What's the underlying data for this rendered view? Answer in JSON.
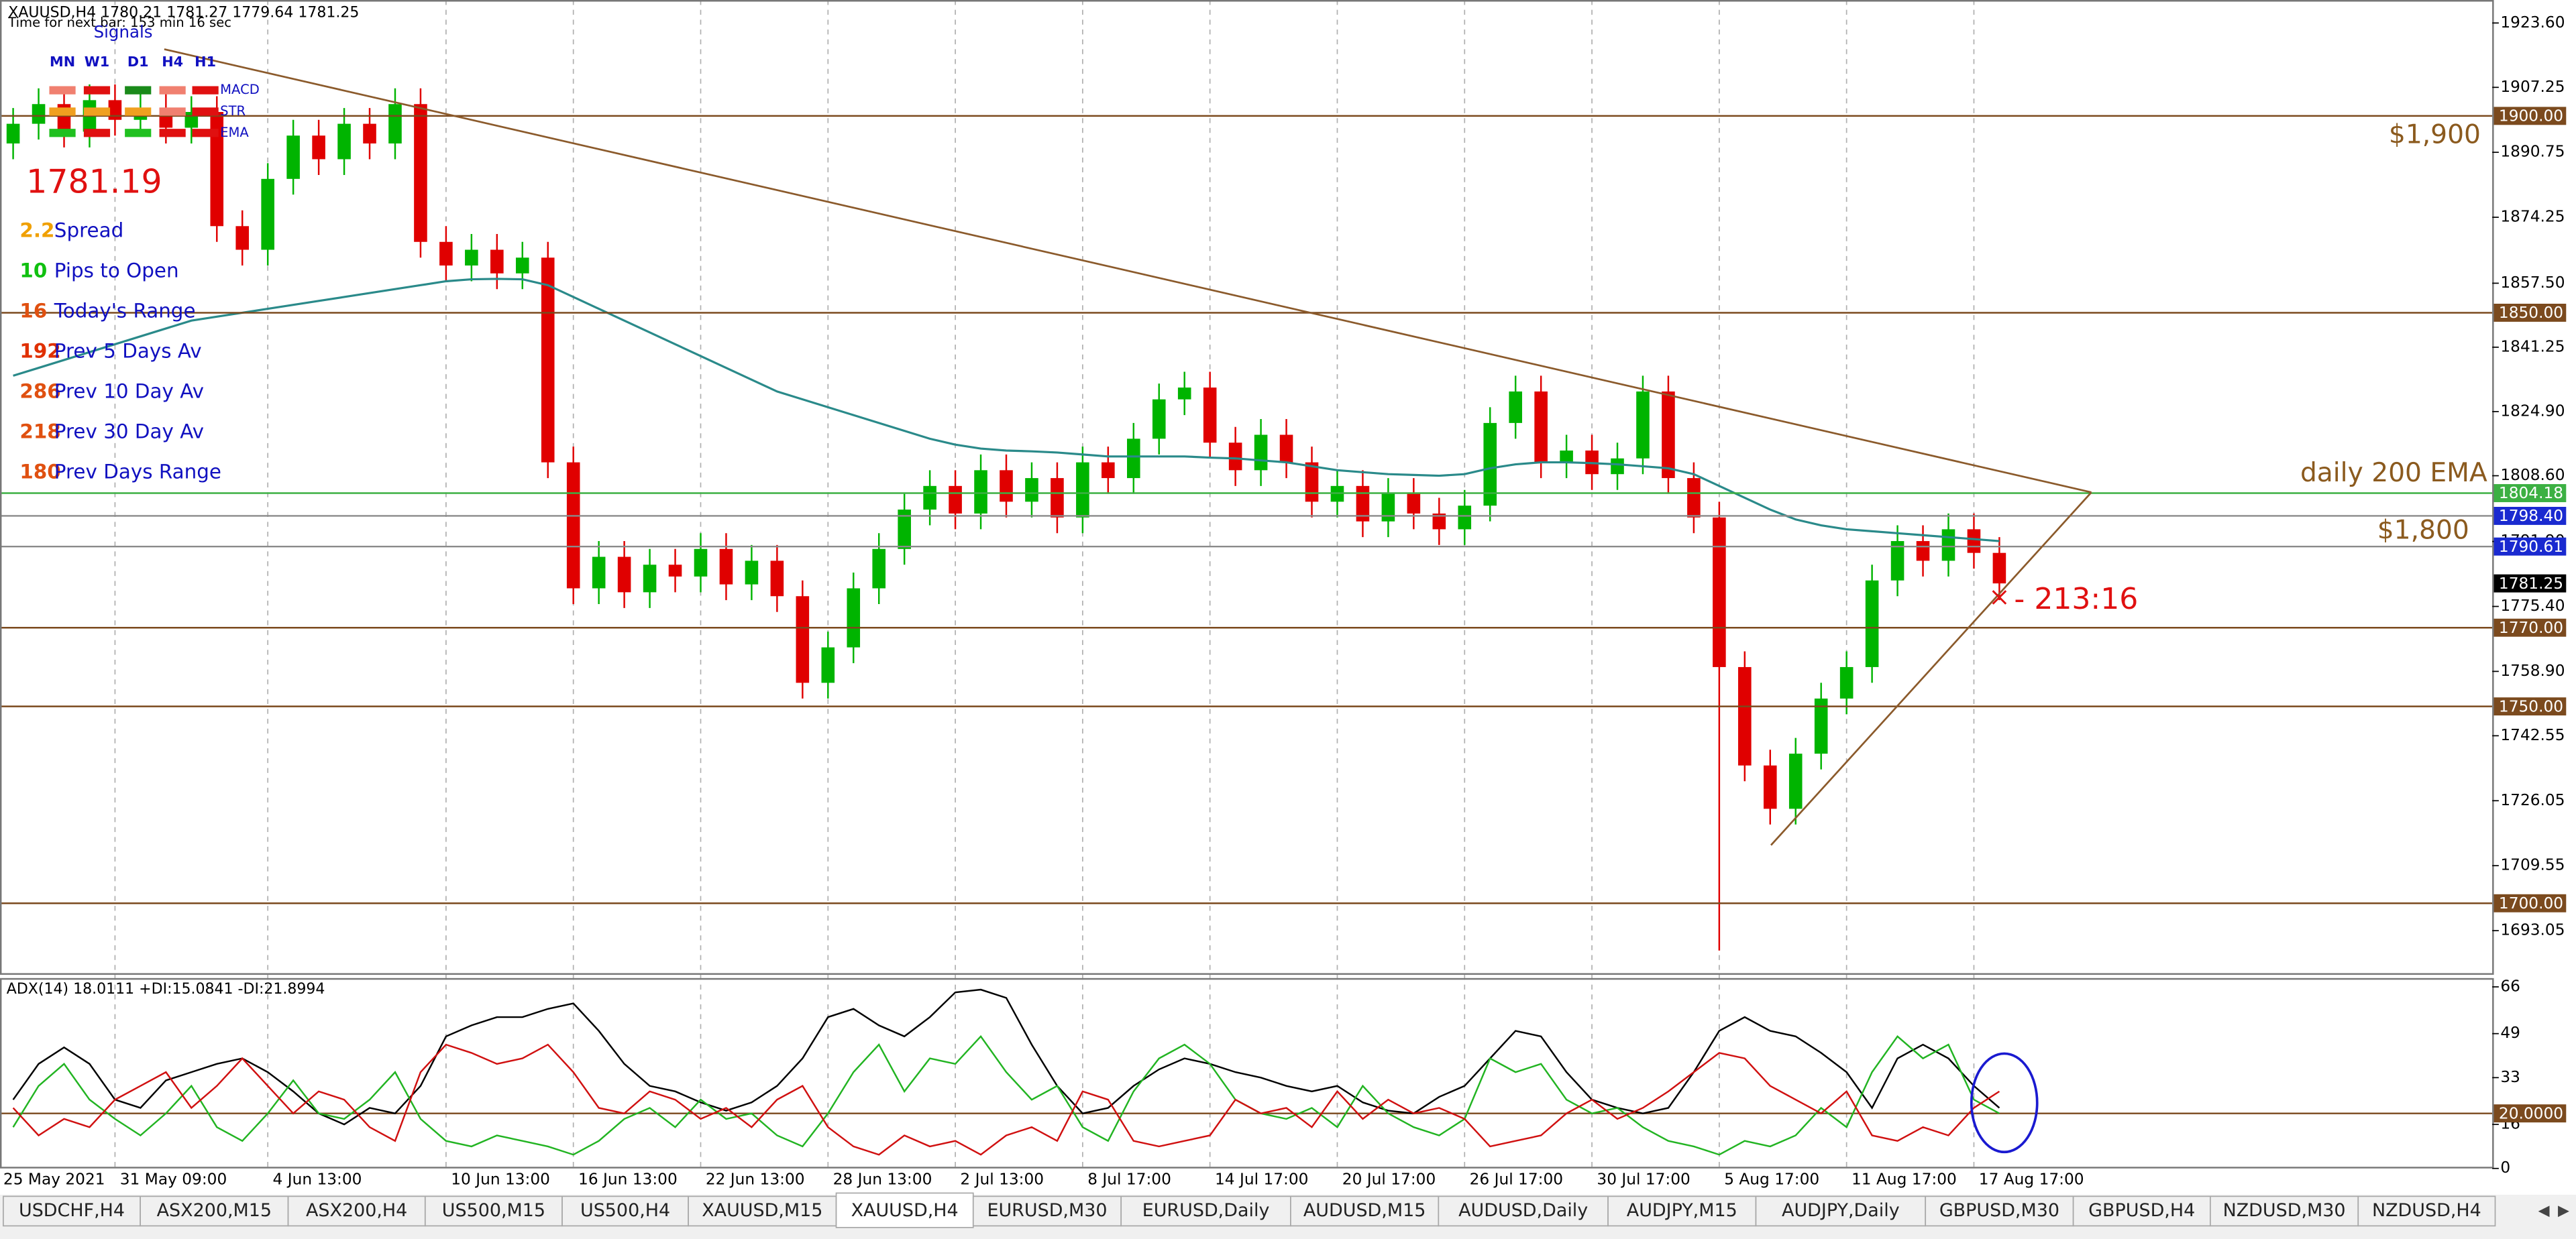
{
  "chart_data": [
    {
      "type": "candlestick",
      "title": "XAUUSD,H4  1780.21 1781.27 1779.64 1781.25",
      "subtitle": "Time for next bar: 153 min 16 sec",
      "categories": [
        "25 May 2021",
        null,
        null,
        null,
        "31 May 09:00",
        null,
        null,
        null,
        null,
        null,
        "4 Jun 13:00",
        null,
        null,
        null,
        null,
        null,
        null,
        "10 Jun 13:00",
        null,
        null,
        null,
        null,
        "16 Jun 13:00",
        null,
        null,
        null,
        null,
        "22 Jun 13:00",
        null,
        null,
        null,
        null,
        "28 Jun 13:00",
        null,
        null,
        null,
        null,
        "2 Jul 13:00",
        null,
        null,
        null,
        null,
        "8 Jul 17:00",
        null,
        null,
        null,
        null,
        "14 Jul 17:00",
        null,
        null,
        null,
        null,
        "20 Jul 17:00",
        null,
        null,
        null,
        null,
        "26 Jul 17:00",
        null,
        null,
        null,
        null,
        "30 Jul 17:00",
        null,
        null,
        null,
        null,
        "5 Aug 17:00",
        null,
        null,
        null,
        null,
        "11 Aug 17:00",
        null,
        null,
        null,
        null,
        "17 Aug 17:00",
        null
      ],
      "open": [
        1893,
        1898,
        1903,
        1896,
        1904,
        1899,
        1902,
        1897,
        1901,
        1872,
        1866,
        1884,
        1895,
        1889,
        1898,
        1893,
        1903,
        1868,
        1862,
        1866,
        1860,
        1864,
        1812,
        1780,
        1788,
        1779,
        1786,
        1783,
        1790,
        1781,
        1787,
        1778,
        1756,
        1765,
        1780,
        1790,
        1800,
        1806,
        1799,
        1810,
        1802,
        1808,
        1798,
        1812,
        1808,
        1818,
        1828,
        1831,
        1817,
        1810,
        1819,
        1812,
        1802,
        1806,
        1797,
        1804,
        1799,
        1795,
        1801,
        1822,
        1830,
        1812,
        1815,
        1809,
        1813,
        1830,
        1808,
        1798,
        1760,
        1735,
        1724,
        1738,
        1752,
        1760,
        1782,
        1792,
        1787,
        1795,
        1789
      ],
      "high": [
        1902,
        1907,
        1907,
        1908,
        1908,
        1906,
        1906,
        1905,
        1905,
        1876,
        1888,
        1899,
        1899,
        1902,
        1902,
        1907,
        1907,
        1872,
        1870,
        1870,
        1868,
        1868,
        1816,
        1792,
        1792,
        1790,
        1790,
        1794,
        1794,
        1791,
        1791,
        1782,
        1769,
        1784,
        1794,
        1804,
        1810,
        1810,
        1814,
        1814,
        1812,
        1812,
        1816,
        1816,
        1822,
        1832,
        1835,
        1835,
        1821,
        1823,
        1823,
        1816,
        1810,
        1810,
        1808,
        1808,
        1803,
        1805,
        1826,
        1834,
        1834,
        1819,
        1819,
        1817,
        1834,
        1834,
        1812,
        1802,
        1764,
        1739,
        1742,
        1756,
        1764,
        1786,
        1796,
        1796,
        1799,
        1799,
        1793
      ],
      "low": [
        1889,
        1894,
        1892,
        1892,
        1895,
        1895,
        1893,
        1893,
        1868,
        1862,
        1862,
        1880,
        1885,
        1885,
        1889,
        1889,
        1864,
        1858,
        1858,
        1856,
        1856,
        1808,
        1776,
        1776,
        1775,
        1775,
        1779,
        1779,
        1777,
        1777,
        1774,
        1752,
        1752,
        1761,
        1776,
        1786,
        1796,
        1795,
        1795,
        1798,
        1798,
        1794,
        1794,
        1804,
        1804,
        1814,
        1824,
        1813,
        1806,
        1806,
        1808,
        1798,
        1798,
        1793,
        1793,
        1795,
        1791,
        1791,
        1797,
        1818,
        1808,
        1808,
        1805,
        1805,
        1809,
        1804,
        1794,
        1688,
        1731,
        1720,
        1720,
        1734,
        1748,
        1756,
        1778,
        1783,
        1783,
        1785,
        1777
      ],
      "close": [
        1898,
        1903,
        1896,
        1904,
        1899,
        1902,
        1897,
        1901,
        1872,
        1866,
        1884,
        1895,
        1889,
        1898,
        1893,
        1903,
        1868,
        1862,
        1866,
        1860,
        1864,
        1812,
        1780,
        1788,
        1779,
        1786,
        1783,
        1790,
        1781,
        1787,
        1778,
        1756,
        1765,
        1780,
        1790,
        1800,
        1806,
        1799,
        1810,
        1802,
        1808,
        1798,
        1812,
        1808,
        1818,
        1828,
        1831,
        1817,
        1810,
        1819,
        1812,
        1802,
        1806,
        1797,
        1804,
        1799,
        1795,
        1801,
        1822,
        1830,
        1812,
        1815,
        1809,
        1813,
        1830,
        1808,
        1798,
        1760,
        1735,
        1724,
        1738,
        1752,
        1760,
        1782,
        1792,
        1787,
        1795,
        1789,
        1781.25
      ],
      "up_color": "#00b400",
      "down_color": "#e00000",
      "ema": {
        "color": "#2a8a8a",
        "values": [
          1834,
          1836,
          1838,
          1840,
          1842,
          1844,
          1846,
          1848,
          1849,
          1850,
          1851,
          1852,
          1853,
          1854,
          1855,
          1856,
          1857,
          1858,
          1858.5,
          1858.6,
          1858.5,
          1857,
          1854,
          1851,
          1848,
          1845,
          1842,
          1839,
          1836,
          1833,
          1830,
          1828,
          1826,
          1824,
          1822,
          1820,
          1818,
          1816.5,
          1815.5,
          1815,
          1814.8,
          1814.5,
          1814,
          1813.5,
          1813.5,
          1813.5,
          1813.5,
          1813.2,
          1813,
          1812.5,
          1812,
          1811,
          1810,
          1809.5,
          1809,
          1808.8,
          1808.6,
          1809,
          1810.5,
          1811.5,
          1812,
          1812,
          1811.8,
          1811.5,
          1811,
          1810.5,
          1809,
          1806,
          1803,
          1800,
          1797.5,
          1796,
          1795,
          1794.5,
          1794,
          1793.5,
          1793,
          1792.5,
          1792
        ]
      },
      "ylim": [
        1682.25,
        1929.44
      ],
      "yticks": [
        {
          "value": 1923.6,
          "label": "1923.60"
        },
        {
          "value": 1907.25,
          "label": "1907.25"
        },
        {
          "value": 1890.75,
          "label": "1890.75"
        },
        {
          "value": 1874.25,
          "label": "1874.25"
        },
        {
          "value": 1857.5,
          "label": "1857.50"
        },
        {
          "value": 1841.25,
          "label": "1841.25"
        },
        {
          "value": 1824.9,
          "label": "1824.90"
        },
        {
          "value": 1808.6,
          "label": "1808.60"
        },
        {
          "value": 1791.9,
          "label": "1791.90"
        },
        {
          "value": 1775.4,
          "label": "1775.40"
        },
        {
          "value": 1758.9,
          "label": "1758.90"
        },
        {
          "value": 1742.55,
          "label": "1742.55"
        },
        {
          "value": 1726.05,
          "label": "1726.05"
        },
        {
          "value": 1709.55,
          "label": "1709.55"
        },
        {
          "value": 1693.05,
          "label": "1693.05"
        }
      ],
      "levels": [
        {
          "value": 1900,
          "label": "1900.00",
          "color": "#7b4a1e"
        },
        {
          "value": 1850,
          "label": "1850.00",
          "color": "#7b4a1e"
        },
        {
          "value": 1804.18,
          "label": "1804.18",
          "color": "#3cb043"
        },
        {
          "value": 1798.4,
          "label": "1798.40",
          "color": "#1a2ad0",
          "line_color": "#8a8a8a"
        },
        {
          "value": 1790.61,
          "label": "1790.61",
          "color": "#1a2ad0",
          "line_color": "#8a8a8a"
        },
        {
          "value": 1781.25,
          "label": "1781.25",
          "color": "#000000",
          "line": false
        },
        {
          "value": 1770,
          "label": "1770.00",
          "color": "#7b4a1e"
        },
        {
          "value": 1750,
          "label": "1750.00",
          "color": "#7b4a1e"
        },
        {
          "value": 1700,
          "label": "1700.00",
          "color": "#7b4a1e"
        }
      ],
      "annotations": [
        "$1,900",
        "daily 200 EMA",
        "$1,800",
        "- 213:16"
      ]
    },
    {
      "type": "line",
      "title": "ADX(14) 18.0111 +DI:15.0841 -DI:21.8994",
      "series": [
        {
          "color": "#000000",
          "values": [
            25,
            38,
            44,
            38,
            25,
            22,
            32,
            35,
            38,
            40,
            35,
            28,
            20,
            16,
            22,
            20,
            30,
            48,
            52,
            55,
            55,
            58,
            60,
            50,
            38,
            30,
            28,
            24,
            21,
            24,
            30,
            40,
            55,
            58,
            52,
            48,
            55,
            64,
            65,
            62,
            45,
            30,
            20,
            22,
            30,
            36,
            40,
            38,
            35,
            33,
            30,
            28,
            30,
            24,
            21,
            20,
            26,
            30,
            40,
            50,
            48,
            35,
            25,
            22,
            20,
            22,
            35,
            50,
            55,
            50,
            48,
            42,
            35,
            22,
            40,
            45,
            40,
            30,
            22
          ]
        },
        {
          "color": "#22b422",
          "values": [
            15,
            30,
            38,
            25,
            18,
            12,
            20,
            30,
            15,
            10,
            20,
            32,
            20,
            18,
            25,
            35,
            18,
            10,
            8,
            12,
            10,
            8,
            5,
            10,
            18,
            22,
            15,
            25,
            18,
            20,
            12,
            8,
            20,
            35,
            45,
            28,
            40,
            38,
            48,
            35,
            25,
            30,
            15,
            10,
            28,
            40,
            45,
            38,
            25,
            20,
            18,
            22,
            15,
            30,
            20,
            15,
            12,
            18,
            40,
            35,
            38,
            25,
            20,
            22,
            15,
            10,
            8,
            5,
            10,
            8,
            12,
            22,
            15,
            35,
            48,
            40,
            45,
            25,
            20
          ]
        },
        {
          "color": "#d01010",
          "values": [
            22,
            12,
            18,
            15,
            25,
            30,
            35,
            22,
            30,
            40,
            30,
            20,
            28,
            25,
            15,
            10,
            35,
            45,
            42,
            38,
            40,
            45,
            35,
            22,
            20,
            28,
            25,
            18,
            22,
            15,
            25,
            30,
            15,
            8,
            5,
            12,
            8,
            10,
            5,
            12,
            15,
            10,
            28,
            25,
            10,
            8,
            10,
            12,
            25,
            20,
            22,
            15,
            28,
            18,
            25,
            20,
            22,
            18,
            8,
            10,
            12,
            20,
            25,
            18,
            22,
            28,
            35,
            42,
            40,
            30,
            25,
            20,
            28,
            12,
            10,
            15,
            12,
            22,
            28
          ]
        }
      ],
      "ylim": [
        0,
        68
      ],
      "yticks": [
        0,
        16,
        33,
        49,
        66
      ],
      "levels": [
        {
          "value": 20,
          "label": "20.0000",
          "color": "#7b4a1e"
        }
      ]
    }
  ],
  "overlay": {
    "signals_title": "Signals",
    "timeframes": [
      "MN",
      "W1",
      "D1",
      "H4",
      "H1"
    ],
    "indicators": [
      "MACD",
      "STR",
      "EMA"
    ],
    "signal_colors": [
      [
        "#f08070",
        "#e01010",
        "#1a8a1a",
        "#f08070",
        "#e01010"
      ],
      [
        "#f0a020",
        "#f0a020",
        "#f0a020",
        "#f08070",
        "#e01010"
      ],
      [
        "#20c020",
        "#e01010",
        "#20c020",
        "#e01010",
        "#e01010"
      ]
    ],
    "price": "1781.19",
    "stats": [
      {
        "value": 2.2,
        "label": "Spread",
        "color": "#f0a000"
      },
      {
        "value": 10,
        "label": "Pips to Open",
        "color": "#10c010"
      },
      {
        "value": 16,
        "label": "Today's Range",
        "color": "#e05010"
      },
      {
        "value": 192,
        "label": "Prev 5 Days Av",
        "color": "#e03000"
      },
      {
        "value": 286,
        "label": "Prev 10 Day Av",
        "color": "#e05010"
      },
      {
        "value": 218,
        "label": "Prev 30 Day Av",
        "color": "#e05010"
      },
      {
        "value": 180,
        "label": "Prev Days Range",
        "color": "#e05010"
      }
    ]
  },
  "tabs": {
    "items": [
      "USDCHF,H4",
      "ASX200,M15",
      "ASX200,H4",
      "US500,M15",
      "US500,H4",
      "XAUUSD,M15",
      "XAUUSD,H4",
      "EURUSD,M30",
      "EURUSD,Daily",
      "AUDUSD,M15",
      "AUDUSD,Daily",
      "AUDJPY,M15",
      "AUDJPY,Daily",
      "GBPUSD,M30",
      "GBPUSD,H4",
      "NZDUSD,M30",
      "NZDUSD,H4"
    ],
    "active": "XAUUSD,H4"
  }
}
